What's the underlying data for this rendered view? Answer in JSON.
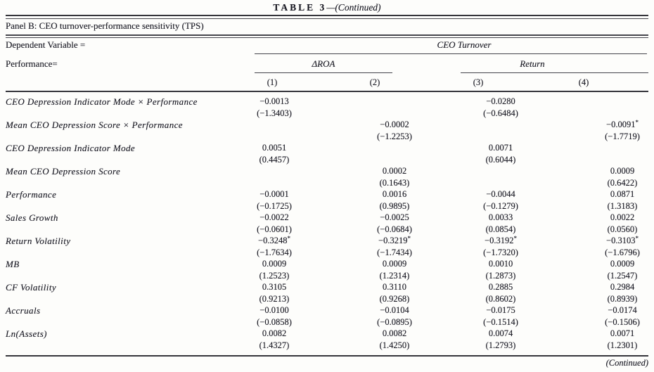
{
  "title": {
    "table_label": "TABLE 3",
    "continued": "—(Continued)"
  },
  "panel_title": "Panel B: CEO turnover-performance sensitivity (TPS)",
  "header": {
    "dependent_variable_label": "Dependent Variable =",
    "dependent_variable_value": "CEO Turnover",
    "performance_label": "Performance=",
    "group1": "ΔROA",
    "group2": "Return",
    "columns": [
      "(1)",
      "(2)",
      "(3)",
      "(4)"
    ]
  },
  "rows": [
    {
      "label": "CEO Depression Indicator Mode × Performance",
      "coefficients": [
        "−0.0013",
        "",
        "−0.0280",
        ""
      ],
      "tstats": [
        "(−1.3403)",
        "",
        "(−0.6484)",
        ""
      ]
    },
    {
      "label": "Mean CEO Depression Score × Performance",
      "coefficients": [
        "",
        "−0.0002",
        "",
        "−0.0091*"
      ],
      "tstats": [
        "",
        "(−1.2253)",
        "",
        "(−1.7719)"
      ]
    },
    {
      "label": "CEO Depression Indicator Mode",
      "coefficients": [
        "0.0051",
        "",
        "0.0071",
        ""
      ],
      "tstats": [
        "(0.4457)",
        "",
        "(0.6044)",
        ""
      ]
    },
    {
      "label": "Mean CEO Depression Score",
      "coefficients": [
        "",
        "0.0002",
        "",
        "0.0009"
      ],
      "tstats": [
        "",
        "(0.1643)",
        "",
        "(0.6422)"
      ]
    },
    {
      "label": "Performance",
      "coefficients": [
        "−0.0001",
        "0.0016",
        "−0.0044",
        "0.0871"
      ],
      "tstats": [
        "(−0.1725)",
        "(0.9895)",
        "(−0.1279)",
        "(1.3183)"
      ]
    },
    {
      "label": "Sales Growth",
      "coefficients": [
        "−0.0022",
        "−0.0025",
        "0.0033",
        "0.0022"
      ],
      "tstats": [
        "(−0.0601)",
        "(−0.0684)",
        "(0.0854)",
        "(0.0560)"
      ]
    },
    {
      "label": "Return Volatility",
      "coefficients": [
        "−0.3248*",
        "−0.3219*",
        "−0.3192*",
        "−0.3103*"
      ],
      "tstats": [
        "(−1.7634)",
        "(−1.7434)",
        "(−1.7320)",
        "(−1.6796)"
      ]
    },
    {
      "label": "MB",
      "coefficients": [
        "0.0009",
        "0.0009",
        "0.0010",
        "0.0009"
      ],
      "tstats": [
        "(1.2523)",
        "(1.2314)",
        "(1.2873)",
        "(1.2547)"
      ]
    },
    {
      "label": "CF Volatility",
      "coefficients": [
        "0.3105",
        "0.3110",
        "0.2885",
        "0.2984"
      ],
      "tstats": [
        "(0.9213)",
        "(0.9268)",
        "(0.8602)",
        "(0.8939)"
      ]
    },
    {
      "label": "Accruals",
      "coefficients": [
        "−0.0100",
        "−0.0104",
        "−0.0175",
        "−0.0174"
      ],
      "tstats": [
        "(−0.0858)",
        "(−0.0895)",
        "(−0.1514)",
        "(−0.1506)"
      ]
    },
    {
      "label": "Ln(Assets)",
      "coefficients": [
        "0.0082",
        "0.0082",
        "0.0074",
        "0.0071"
      ],
      "tstats": [
        "(1.4327)",
        "(1.4250)",
        "(1.2793)",
        "(1.2301)"
      ]
    }
  ],
  "footer": {
    "continued": "(Continued)"
  },
  "colors": {
    "text": "#1a1a23",
    "rule": "#45454c",
    "heavy_rule": "#35353b",
    "background": "#fdfdfb"
  }
}
